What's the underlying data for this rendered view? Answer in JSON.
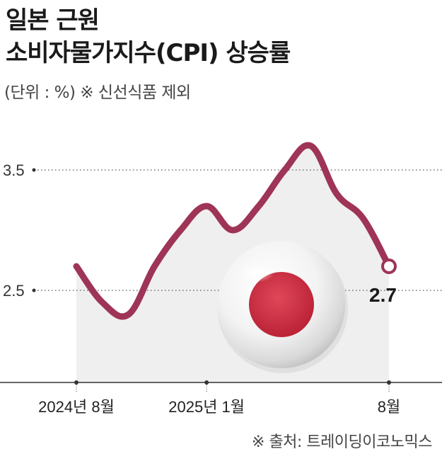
{
  "title_line1": "일본 근원",
  "title_line2": "소비자물가지수(CPI) 상승률",
  "unit_note": "(단위 : %) ※ 신선식품 제외",
  "source": "※ 출처: 트레이딩이코노믹스",
  "colors": {
    "line": "#9e3456",
    "area": "#efefef",
    "japan_red": "#c8283c"
  },
  "chart_data": {
    "type": "line",
    "yticks": [
      2.5,
      3.5
    ],
    "ylim": [
      1.9,
      4.3
    ],
    "x_labels": [
      "2024년 8월",
      "2025년 1월",
      "8월"
    ],
    "x": [
      "2024-08",
      "2024-09",
      "2024-10",
      "2024-11",
      "2024-12",
      "2025-01",
      "2025-02",
      "2025-03",
      "2025-04",
      "2025-05",
      "2025-06",
      "2025-07",
      "2025-08"
    ],
    "values": [
      2.7,
      2.4,
      2.3,
      2.7,
      3.0,
      3.2,
      3.0,
      3.2,
      3.5,
      3.7,
      3.3,
      3.1,
      2.7
    ],
    "series": [
      {
        "values": [
          2.7,
          2.4,
          2.3,
          2.7,
          3.0,
          3.2,
          3.0,
          3.2,
          3.5,
          3.7,
          3.3,
          3.1,
          2.7
        ]
      }
    ],
    "last_value_label": "2.7",
    "grid": "dotted"
  }
}
